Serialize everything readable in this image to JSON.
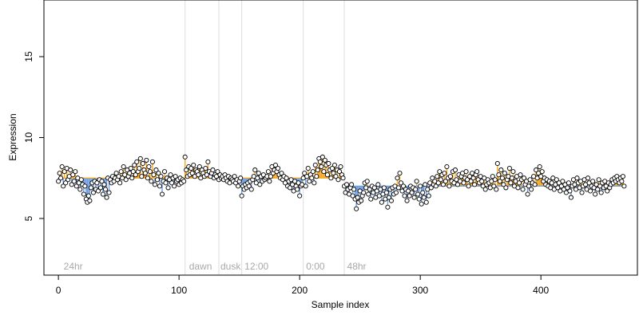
{
  "chart_data": {
    "type": "scatter",
    "xlabel": "Sample index",
    "ylabel": "Expression",
    "xlim": [
      -12,
      480
    ],
    "ylim": [
      1.5,
      18.5
    ],
    "x_ticks": [
      0,
      100,
      200,
      300,
      400
    ],
    "y_ticks": [
      5,
      10,
      15
    ],
    "grid": false,
    "colors": {
      "above": "#f5a623",
      "below": "#6f9ee0",
      "point_stroke": "#000000",
      "point_fill": "#ffffff",
      "divider": "#dddddd",
      "annotation": "#a8a8a8"
    },
    "dividers": [
      105,
      133,
      152,
      203,
      237
    ],
    "annotations": [
      {
        "label": "24hr",
        "x": 3
      },
      {
        "label": "dawn",
        "x": 107
      },
      {
        "label": "dusk",
        "x": 133
      },
      {
        "label": "12:00",
        "x": 153
      },
      {
        "label": "0:00",
        "x": 204
      },
      {
        "label": "48hr",
        "x": 238
      }
    ],
    "segments": [
      {
        "start": 0,
        "end": 32,
        "baseline": 7.5,
        "values": [
          7.3,
          7.8,
          7.5,
          8.2,
          7.0,
          7.9,
          7.2,
          8.1,
          7.4,
          7.6,
          8.0,
          7.1,
          7.7,
          7.3,
          7.9,
          7.0,
          7.5,
          7.2,
          6.8,
          7.4,
          7.1,
          6.5,
          7.0,
          6.2,
          6.0,
          6.4,
          6.1,
          6.9,
          7.2,
          6.6,
          7.3,
          6.8
        ]
      },
      {
        "start": 32,
        "end": 105,
        "baseline": 7.5,
        "values": [
          7.2,
          6.7,
          7.4,
          6.9,
          7.3,
          6.5,
          7.1,
          6.8,
          6.3,
          7.5,
          6.6,
          7.4,
          7.2,
          7.6,
          7.3,
          7.5,
          7.8,
          7.4,
          7.6,
          7.2,
          7.9,
          7.5,
          8.2,
          7.7,
          7.4,
          8.0,
          7.6,
          7.8,
          8.1,
          7.5,
          7.9,
          8.3,
          7.7,
          8.5,
          7.9,
          8.1,
          8.7,
          7.6,
          8.4,
          8.0,
          7.8,
          8.6,
          7.5,
          8.2,
          7.9,
          7.3,
          8.5,
          7.7,
          7.1,
          8.0,
          7.4,
          7.8,
          7.0,
          7.6,
          6.5,
          7.3,
          7.9,
          7.2,
          7.5,
          6.9,
          7.4,
          7.7,
          7.2,
          7.5,
          7.0,
          7.6,
          7.3,
          7.4,
          7.1,
          7.5,
          7.2,
          7.4,
          7.3
        ]
      },
      {
        "start": 105,
        "end": 152,
        "baseline": 7.5,
        "values": [
          8.8,
          8.0,
          7.6,
          8.2,
          7.7,
          8.1,
          7.8,
          8.3,
          7.6,
          8.0,
          7.9,
          7.7,
          8.2,
          7.5,
          8.0,
          7.8,
          7.6,
          8.1,
          7.7,
          8.5,
          7.9,
          7.6,
          7.8,
          8.0,
          7.5,
          7.7,
          7.6,
          7.9,
          7.4,
          7.7,
          7.5,
          7.6,
          7.4,
          7.7,
          7.5,
          7.3,
          7.6,
          7.2,
          7.5,
          7.4,
          7.3,
          7.6,
          7.2,
          7.4,
          7.0,
          7.3,
          7.5
        ]
      },
      {
        "start": 152,
        "end": 203,
        "baseline": 7.5,
        "values": [
          6.4,
          7.0,
          6.8,
          7.1,
          6.9,
          7.2,
          7.0,
          7.3,
          6.8,
          7.4,
          7.6,
          8.0,
          7.2,
          7.5,
          7.8,
          7.1,
          7.6,
          7.3,
          7.7,
          7.4,
          7.5,
          7.6,
          7.9,
          7.3,
          7.6,
          8.2,
          7.8,
          8.0,
          8.3,
          7.9,
          8.1,
          7.7,
          7.5,
          7.8,
          7.4,
          7.6,
          7.2,
          7.5,
          7.0,
          7.3,
          6.9,
          7.4,
          7.1,
          6.7,
          7.3,
          7.0,
          6.8,
          7.2,
          6.4,
          7.0,
          7.1
        ]
      },
      {
        "start": 203,
        "end": 237,
        "baseline": 7.5,
        "values": [
          7.5,
          7.8,
          7.0,
          7.6,
          8.1,
          7.3,
          7.7,
          7.5,
          7.9,
          7.2,
          8.3,
          7.6,
          8.0,
          8.7,
          8.5,
          8.2,
          8.8,
          7.9,
          8.6,
          8.3,
          7.7,
          8.4,
          8.0,
          7.5,
          8.1,
          7.8,
          8.3,
          7.6,
          8.0,
          7.4,
          7.9,
          8.2,
          7.7,
          7.5
        ]
      },
      {
        "start": 237,
        "end": 463,
        "baseline": 7.0,
        "values": [
          7.0,
          6.6,
          7.1,
          6.8,
          6.5,
          6.9,
          7.1,
          6.4,
          6.8,
          6.2,
          5.6,
          6.3,
          6.0,
          6.7,
          6.1,
          6.4,
          6.6,
          7.2,
          6.9,
          7.3,
          6.5,
          6.8,
          6.2,
          7.0,
          6.6,
          6.9,
          6.3,
          6.7,
          7.1,
          6.4,
          6.8,
          6.0,
          6.5,
          6.9,
          6.2,
          6.6,
          5.7,
          6.3,
          6.8,
          6.1,
          6.9,
          6.5,
          7.0,
          6.6,
          7.5,
          6.9,
          7.8,
          7.2,
          6.7,
          7.0,
          6.4,
          6.8,
          6.1,
          6.7,
          6.4,
          7.0,
          6.6,
          6.9,
          6.3,
          6.8,
          7.3,
          6.5,
          6.2,
          7.0,
          5.9,
          6.6,
          6.3,
          7.1,
          6.0,
          6.8,
          6.4,
          7.2,
          6.9,
          7.5,
          7.1,
          7.3,
          7.0,
          7.6,
          7.2,
          7.9,
          7.4,
          7.7,
          7.1,
          7.8,
          7.3,
          8.2,
          7.5,
          7.0,
          7.6,
          7.3,
          7.9,
          7.2,
          8.0,
          7.4,
          7.1,
          7.7,
          7.3,
          7.6,
          7.8,
          7.2,
          7.5,
          7.9,
          7.4,
          7.0,
          7.6,
          7.3,
          7.8,
          7.5,
          7.1,
          7.7,
          7.9,
          7.4,
          7.2,
          7.6,
          7.3,
          7.0,
          7.5,
          6.8,
          7.1,
          7.4,
          7.2,
          6.9,
          7.3,
          7.6,
          7.0,
          7.4,
          6.8,
          8.4,
          7.7,
          7.3,
          8.0,
          7.5,
          7.1,
          7.8,
          6.9,
          7.4,
          7.6,
          8.1,
          7.2,
          7.5,
          7.9,
          7.0,
          7.3,
          7.6,
          6.9,
          7.2,
          7.7,
          7.4,
          6.8,
          7.5,
          7.1,
          7.3,
          6.5,
          7.0,
          7.4,
          6.8,
          7.2,
          7.6,
          7.1,
          8.0,
          7.5,
          7.8,
          8.2,
          7.6,
          7.9,
          7.3,
          7.5,
          7.1,
          7.4,
          7.0,
          7.3,
          6.9,
          7.2,
          7.5,
          6.8,
          7.1,
          7.4,
          6.9,
          7.2,
          6.7,
          7.0,
          7.3,
          6.8,
          7.1,
          6.6,
          6.9,
          7.2,
          6.7,
          6.3,
          7.0,
          7.4,
          7.1,
          6.8,
          7.5,
          7.2,
          6.9,
          7.3,
          6.6,
          7.0,
          7.4,
          7.1,
          6.8,
          7.5,
          7.2,
          6.7,
          7.0,
          7.3,
          6.9,
          6.5,
          7.1,
          6.8,
          7.4,
          7.0,
          6.6,
          7.2,
          6.9,
          7.3,
          7.0,
          6.7,
          7.2,
          6.9,
          7.1,
          7.4,
          7.2,
          7.5,
          7.3,
          7.6,
          7.4,
          7.2,
          7.5,
          7.3,
          7.6,
          7.0
        ]
      }
    ]
  }
}
